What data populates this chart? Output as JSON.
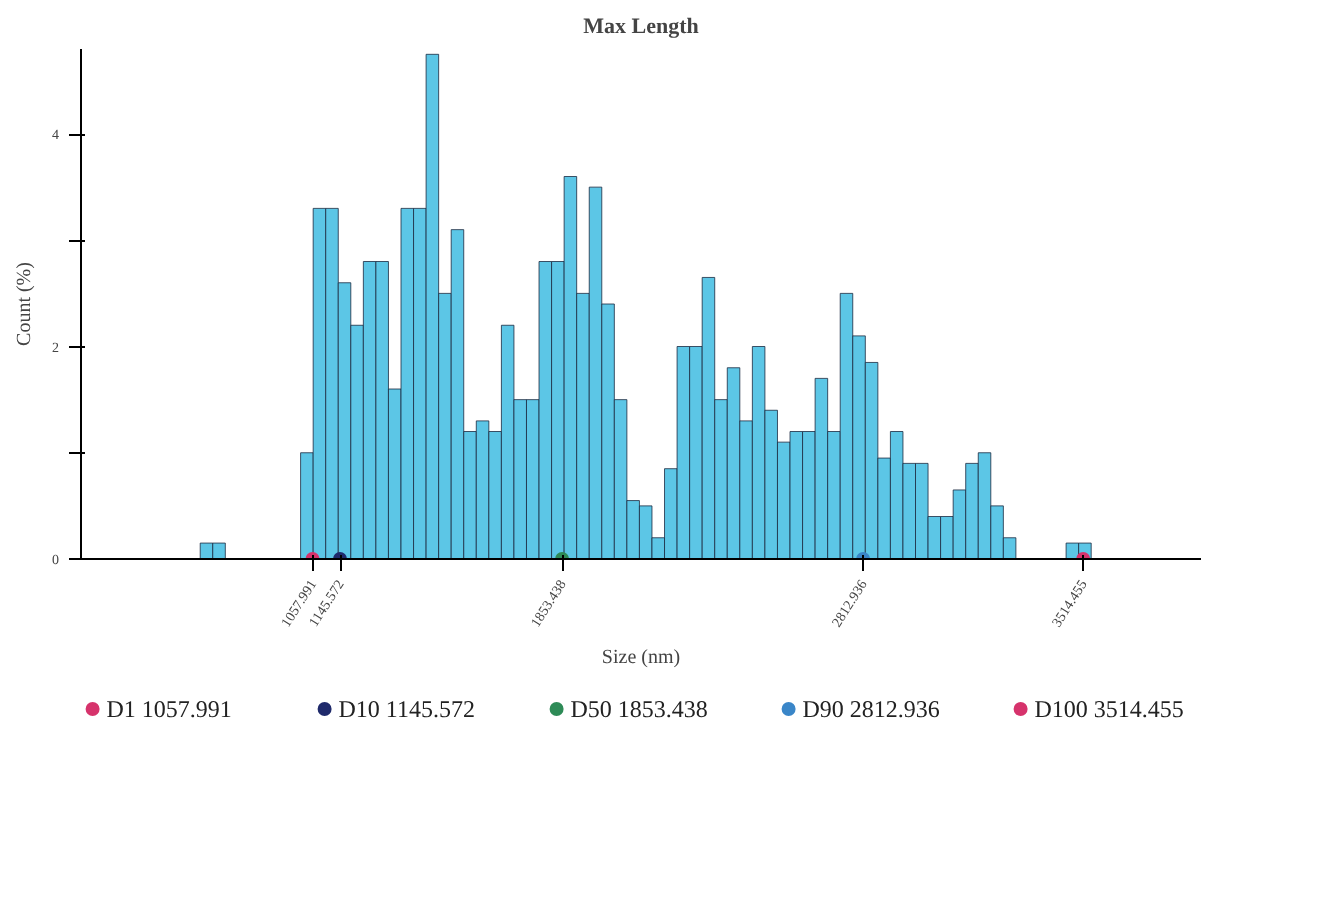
{
  "chart_data": {
    "type": "histogram",
    "title": "Max Length",
    "xlabel": "Size (nm)",
    "ylabel": "Count (%)",
    "bins": [
      660,
      700,
      740,
      780,
      820,
      860,
      900,
      940,
      980,
      1020,
      1060,
      1100,
      1140,
      1180,
      1220,
      1260,
      1300,
      1340,
      1380,
      1420,
      1460,
      1500,
      1540,
      1580,
      1620,
      1660,
      1700,
      1740,
      1780,
      1820,
      1860,
      1900,
      1940,
      1980,
      2020,
      2060,
      2100,
      2140,
      2180,
      2220,
      2260,
      2300,
      2340,
      2380,
      2420,
      2460,
      2500,
      2540,
      2580,
      2620,
      2660,
      2700,
      2740,
      2780,
      2820,
      2860,
      2900,
      2940,
      2980,
      3020,
      3060,
      3100,
      3140,
      3180,
      3220,
      3260,
      3300,
      3340,
      3380,
      3420,
      3460,
      3500,
      3540,
      3580
    ],
    "values": [
      0,
      0.15,
      0.15,
      0,
      0,
      0,
      0,
      0,
      0,
      1.0,
      3.3,
      3.3,
      2.6,
      2.2,
      2.8,
      2.8,
      1.6,
      3.3,
      3.3,
      4.75,
      2.5,
      3.1,
      1.2,
      1.3,
      1.2,
      2.2,
      1.5,
      1.5,
      2.8,
      2.8,
      3.6,
      2.5,
      3.5,
      2.4,
      1.5,
      0.55,
      0.5,
      0.2,
      0.85,
      2.0,
      2.0,
      2.65,
      1.5,
      1.8,
      1.3,
      2.0,
      1.4,
      1.1,
      1.2,
      1.2,
      1.7,
      1.2,
      2.5,
      2.1,
      1.85,
      0.95,
      1.2,
      0.9,
      0.9,
      0.4,
      0.4,
      0.65,
      0.9,
      1.0,
      0.5,
      0.2,
      0,
      0,
      0,
      0,
      0.15,
      0.15,
      0
    ],
    "color": "#5cc6e6",
    "series": [
      {
        "name": "D1 1057.991",
        "type": "scatter",
        "color": "#d6336c",
        "x": [
          1057.991
        ],
        "values": [
          0
        ]
      },
      {
        "name": "D10 1145.572",
        "type": "scatter",
        "color": "#1f2a6b",
        "x": [
          1145.572
        ],
        "values": [
          0
        ]
      },
      {
        "name": "D50 1853.438",
        "type": "scatter",
        "color": "#2e8b57",
        "x": [
          1853.438
        ],
        "values": [
          0
        ]
      },
      {
        "name": "D90 2812.936",
        "type": "scatter",
        "color": "#3a86c8",
        "x": [
          2812.936
        ],
        "values": [
          0
        ]
      },
      {
        "name": "D100 3514.455",
        "type": "scatter",
        "color": "#d6336c",
        "x": [
          3514.455
        ],
        "values": [
          0
        ]
      }
    ],
    "marker": "circle",
    "xlim": [
      320,
      3890
    ],
    "ylim": [
      0,
      4.8
    ],
    "xticks": [
      1057.991,
      1145.572,
      1853.438,
      2812.936,
      3514.455
    ],
    "yticks": [
      0,
      {
        "value": 1,
        "label": null
      },
      2,
      {
        "value": 3,
        "label": null
      },
      4
    ],
    "grid": false,
    "legend": "bottom"
  }
}
